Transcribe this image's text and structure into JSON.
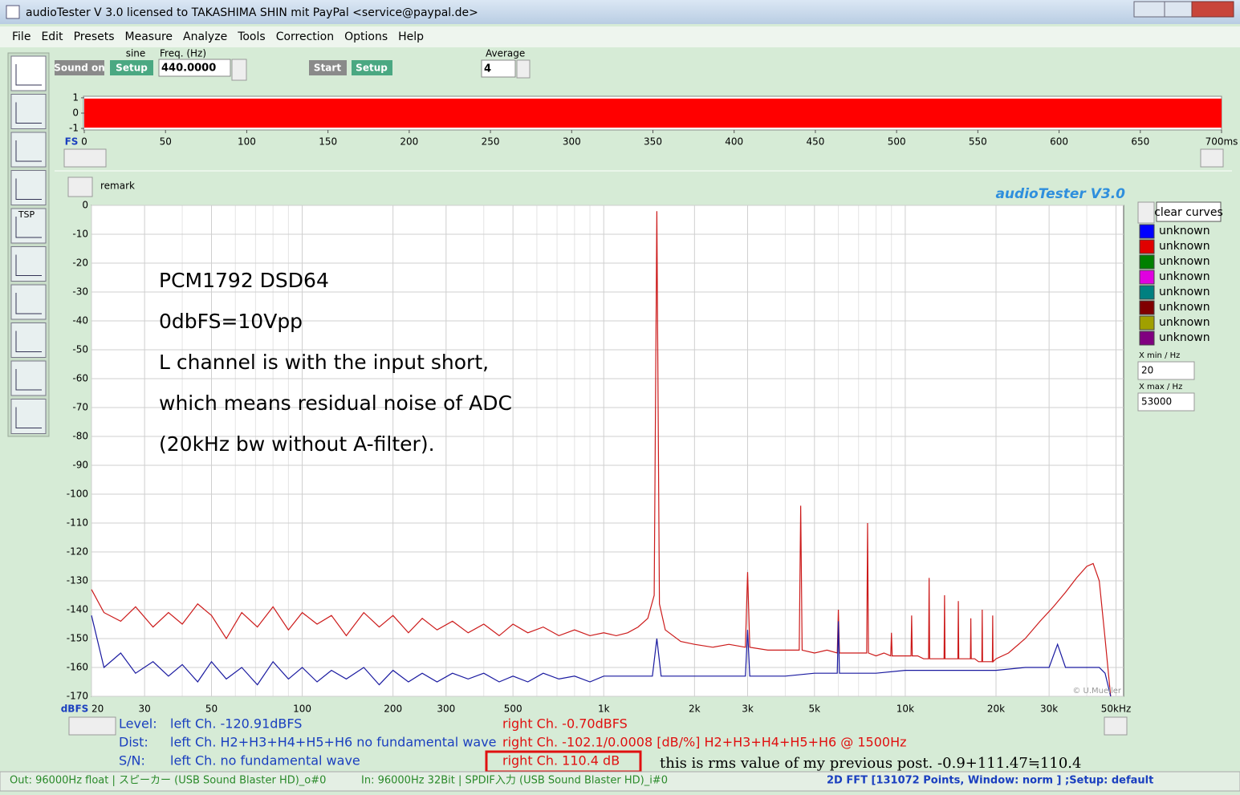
{
  "window": {
    "title": "audioTester  V 3.0    licensed to TAKASHIMA SHIN mit PayPal <service@paypal.de>"
  },
  "menu": [
    "File",
    "Edit",
    "Presets",
    "Measure",
    "Analyze",
    "Tools",
    "Correction",
    "Options",
    "Help"
  ],
  "sidebar": {
    "tsp": "TSP"
  },
  "toolbar": {
    "sine_label": "sine",
    "sound_on": "Sound on",
    "setup1": "Setup",
    "freq_label": "Freq. (Hz)",
    "freq_value": "440.0000",
    "start": "Start",
    "setup2": "Setup",
    "average_label": "Average",
    "average_value": "4"
  },
  "panel": {
    "remark": "remark",
    "brand": "audioTester  V3.0",
    "clear_curves": "clear curves",
    "xmin_label": "X min / Hz",
    "xmin_value": "20",
    "xmax_label": "X max / Hz",
    "xmax_value": "53000",
    "copyright": "© U.Mueller"
  },
  "annotation": [
    "PCM1792 DSD64",
    "0dbFS=10Vpp",
    "L channel is with the input short,",
    "which means residual noise of ADC",
    "(20kHz bw without A-filter)."
  ],
  "chart_data": [
    {
      "type": "area",
      "ylabel": "FS",
      "xlim": [
        0,
        700
      ],
      "ylim": [
        -1.1,
        1.1
      ],
      "xticks": [
        0,
        50,
        100,
        150,
        200,
        250,
        300,
        350,
        400,
        450,
        500,
        550,
        600,
        650,
        {
          "value": 700,
          "label": "700ms"
        }
      ],
      "yticks": [
        1,
        0,
        -1
      ],
      "series": [
        {
          "color": "#ff0000",
          "x": [
            0,
            700
          ],
          "high": [
            0.95,
            0.95
          ],
          "low": [
            -0.95,
            -0.95
          ]
        }
      ]
    },
    {
      "type": "line",
      "xscale": "log",
      "ylabel": "dBFS",
      "grid": true,
      "xlim": [
        20,
        53000
      ],
      "ylim": [
        -170,
        0
      ],
      "xticks": [
        20,
        30,
        50,
        100,
        200,
        300,
        500,
        {
          "value": 1000,
          "label": "1k"
        },
        {
          "value": 2000,
          "label": "2k"
        },
        {
          "value": 3000,
          "label": "3k"
        },
        {
          "value": 5000,
          "label": "5k"
        },
        {
          "value": 10000,
          "label": "10k"
        },
        {
          "value": 20000,
          "label": "20k"
        },
        {
          "value": 30000,
          "label": "30k"
        },
        {
          "value": 50000,
          "label": "50kHz"
        }
      ],
      "x_minor_grid": [
        40,
        60,
        70,
        80,
        90,
        400,
        600,
        700,
        800,
        900,
        4000,
        6000,
        7000,
        8000,
        9000,
        40000
      ],
      "yticks": [
        0,
        -10,
        -20,
        -30,
        -40,
        -50,
        -60,
        -70,
        -80,
        -90,
        -100,
        -110,
        -120,
        -130,
        -140,
        -150,
        -160,
        -170
      ],
      "legend_entries": [
        {
          "label": "unknown",
          "color": "#0000ff"
        },
        {
          "label": "unknown",
          "color": "#e00000"
        },
        {
          "label": "unknown",
          "color": "#008000"
        },
        {
          "label": "unknown",
          "color": "#e000e0"
        },
        {
          "label": "unknown",
          "color": "#008080"
        },
        {
          "label": "unknown",
          "color": "#800000"
        },
        {
          "label": "unknown",
          "color": "#a0a000"
        },
        {
          "label": "unknown",
          "color": "#800080"
        }
      ],
      "series": [
        {
          "color": "#1a1aa0",
          "x": [
            20,
            22,
            25,
            28,
            32,
            36,
            40,
            45,
            50,
            56,
            63,
            71,
            80,
            90,
            100,
            112,
            125,
            140,
            160,
            180,
            200,
            225,
            250,
            280,
            315,
            355,
            400,
            450,
            500,
            560,
            630,
            710,
            800,
            900,
            1000,
            1200,
            1450,
            1500,
            1550,
            2000,
            2500,
            2950,
            3000,
            3050,
            4000,
            5000,
            5950,
            6000,
            6050,
            7000,
            8000,
            10000,
            12000,
            15000,
            20000,
            25000,
            30000,
            32000,
            34000,
            38000,
            42000,
            44000,
            46000,
            48000
          ],
          "values": [
            -142,
            -160,
            -155,
            -162,
            -158,
            -163,
            -159,
            -165,
            -158,
            -164,
            -160,
            -166,
            -158,
            -164,
            -160,
            -165,
            -161,
            -164,
            -160,
            -166,
            -161,
            -165,
            -162,
            -165,
            -162,
            -164,
            -162,
            -165,
            -163,
            -165,
            -162,
            -164,
            -163,
            -165,
            -163,
            -163,
            -163,
            -150,
            -163,
            -163,
            -163,
            -163,
            -147,
            -163,
            -163,
            -162,
            -162,
            -144,
            -162,
            -162,
            -162,
            -161,
            -161,
            -161,
            -161,
            -160,
            -160,
            -152,
            -160,
            -160,
            -160,
            -160,
            -162,
            -170
          ]
        },
        {
          "color": "#cc1a1a",
          "x": [
            20,
            22,
            25,
            28,
            32,
            36,
            40,
            45,
            50,
            56,
            63,
            71,
            80,
            90,
            100,
            112,
            125,
            140,
            160,
            180,
            200,
            225,
            250,
            280,
            315,
            355,
            400,
            450,
            500,
            560,
            630,
            710,
            800,
            900,
            1000,
            1100,
            1200,
            1300,
            1400,
            1470,
            1500,
            1530,
            1600,
            1800,
            2000,
            2300,
            2600,
            2950,
            3000,
            3050,
            3500,
            4000,
            4450,
            4500,
            4550,
            5000,
            5500,
            5950,
            6000,
            6050,
            6500,
            7000,
            7450,
            7500,
            7550,
            8000,
            8500,
            8950,
            9000,
            9050,
            9500,
            10000,
            10450,
            10500,
            10550,
            11000,
            11500,
            11950,
            12000,
            12050,
            12500,
            13000,
            13450,
            13500,
            13550,
            14000,
            14500,
            14950,
            15000,
            15050,
            15500,
            16000,
            16450,
            16500,
            16550,
            17000,
            17500,
            17950,
            18000,
            18050,
            18500,
            19000,
            19450,
            19500,
            19550,
            20000,
            22000,
            25000,
            28000,
            31000,
            34000,
            37000,
            40000,
            42000,
            44000,
            46000,
            48000
          ],
          "values": [
            -133,
            -141,
            -144,
            -139,
            -146,
            -141,
            -145,
            -138,
            -142,
            -150,
            -141,
            -146,
            -139,
            -147,
            -141,
            -145,
            -142,
            -149,
            -141,
            -146,
            -142,
            -148,
            -143,
            -147,
            -144,
            -148,
            -145,
            -149,
            -145,
            -148,
            -146,
            -149,
            -147,
            -149,
            -148,
            -149,
            -148,
            -146,
            -143,
            -135,
            -2,
            -138,
            -147,
            -151,
            -152,
            -153,
            -152,
            -153,
            -127,
            -153,
            -154,
            -154,
            -154,
            -104,
            -154,
            -155,
            -154,
            -155,
            -140,
            -155,
            -155,
            -155,
            -155,
            -110,
            -155,
            -156,
            -155,
            -156,
            -148,
            -156,
            -156,
            -156,
            -156,
            -142,
            -156,
            -156,
            -157,
            -157,
            -129,
            -157,
            -157,
            -157,
            -157,
            -135,
            -157,
            -157,
            -157,
            -157,
            -137,
            -157,
            -157,
            -157,
            -157,
            -143,
            -157,
            -157,
            -158,
            -158,
            -140,
            -158,
            -158,
            -158,
            -158,
            -142,
            -158,
            -157,
            -155,
            -150,
            -144,
            -139,
            -134,
            -129,
            -125,
            -124,
            -130,
            -150,
            -170
          ]
        }
      ]
    }
  ],
  "results": {
    "level_label": "Level:",
    "level_left": "left Ch. -120.91dBFS",
    "level_right": "right Ch. -0.70dBFS",
    "dist_label": "Dist:",
    "dist_left": "left Ch. H2+H3+H4+H5+H6 no fundamental wave",
    "dist_right": "right Ch. -102.1/0.0008 [dB/%] H2+H3+H4+H5+H6 @ 1500Hz",
    "sn_label": "S/N:",
    "sn_left": "left Ch.  no fundamental wave",
    "sn_right": "right Ch. 110.4 dB",
    "note": "this is rms value of my previous post. -0.9+111.47≒110.4"
  },
  "status": {
    "out": "Out: 96000Hz float  | スピーカー (USB Sound Blaster HD)_o#0",
    "in": "In: 96000Hz 32Bit  | SPDIF入力 (USB Sound Blaster HD)_i#0",
    "fft": "2D FFT [131072 Points, Window: norm ]  ;Setup:  default"
  }
}
